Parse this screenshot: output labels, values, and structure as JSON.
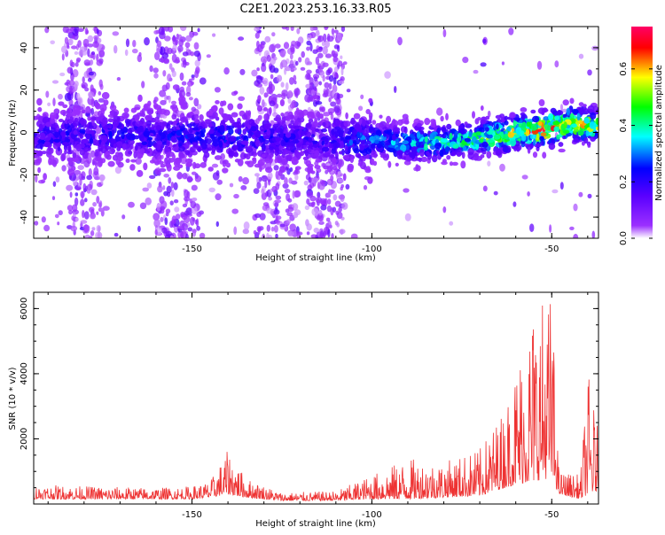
{
  "title": "C2E1.2023.253.16.33.R05",
  "chart_data": [
    {
      "type": "heatmap",
      "xlabel": "Height of straight line (km)",
      "ylabel": "Frequency (Hz)",
      "xlim": [
        -194,
        -37
      ],
      "ylim": [
        -50,
        50
      ],
      "xticks": [
        -150,
        -100,
        -50
      ],
      "yticks": [
        -40,
        -20,
        0,
        20,
        40
      ],
      "xtick_labels": [
        "-150",
        "-100",
        "-50"
      ],
      "ytick_labels": [
        "-40",
        "-20",
        "0",
        "20",
        "40"
      ],
      "colorbar": {
        "label": "Normalized spectral amplitude",
        "range": [
          0,
          0.75
        ],
        "ticks": [
          0.0,
          0.2,
          0.4,
          0.6
        ],
        "tick_labels": [
          "0.0",
          "0.2",
          "0.4",
          "0.6"
        ],
        "colormap": [
          "#ffffff",
          "#9b30ff",
          "#5a00ff",
          "#0000ff",
          "#00ffff",
          "#00ff00",
          "#ffff00",
          "#ff0000",
          "#ff0066"
        ]
      },
      "ridge": {
        "description_points": [
          {
            "x": -194,
            "y": -2,
            "amp": 0.22
          },
          {
            "x": -170,
            "y": -1,
            "amp": 0.22
          },
          {
            "x": -140,
            "y": -2,
            "amp": 0.24
          },
          {
            "x": -115,
            "y": -3,
            "amp": 0.2
          },
          {
            "x": -100,
            "y": -4,
            "amp": 0.3
          },
          {
            "x": -85,
            "y": -5,
            "amp": 0.38
          },
          {
            "x": -70,
            "y": -3,
            "amp": 0.45
          },
          {
            "x": -60,
            "y": 0,
            "amp": 0.55
          },
          {
            "x": -50,
            "y": 2,
            "amp": 0.65
          },
          {
            "x": -45,
            "y": 4,
            "amp": 0.55
          },
          {
            "x": -37,
            "y": 3,
            "amp": 0.55
          }
        ]
      },
      "grid": false
    },
    {
      "type": "line",
      "xlabel": "Height of straight line (km)",
      "ylabel": "SNR (10 * v/v)",
      "xlim": [
        -194,
        -37
      ],
      "ylim": [
        0,
        6500
      ],
      "xticks": [
        -150,
        -100,
        -50
      ],
      "yticks": [
        2000,
        4000,
        6000
      ],
      "xtick_labels": [
        "-150",
        "-100",
        "-50"
      ],
      "ytick_labels": [
        "2000",
        "4000",
        "6000"
      ],
      "series": [
        {
          "color": "#ee3333",
          "envelope": [
            {
              "x": -194,
              "base": 150,
              "peak": 600
            },
            {
              "x": -180,
              "base": 150,
              "peak": 550
            },
            {
              "x": -160,
              "base": 150,
              "peak": 500
            },
            {
              "x": -150,
              "base": 150,
              "peak": 550
            },
            {
              "x": -145,
              "base": 200,
              "peak": 700
            },
            {
              "x": -140,
              "base": 300,
              "peak": 1650
            },
            {
              "x": -135,
              "base": 200,
              "peak": 800
            },
            {
              "x": -125,
              "base": 100,
              "peak": 350
            },
            {
              "x": -110,
              "base": 100,
              "peak": 400
            },
            {
              "x": -100,
              "base": 150,
              "peak": 900
            },
            {
              "x": -90,
              "base": 150,
              "peak": 1400
            },
            {
              "x": -80,
              "base": 200,
              "peak": 1300
            },
            {
              "x": -70,
              "base": 250,
              "peak": 1700
            },
            {
              "x": -63,
              "base": 500,
              "peak": 3000
            },
            {
              "x": -60,
              "base": 600,
              "peak": 4300
            },
            {
              "x": -55,
              "base": 700,
              "peak": 6300
            },
            {
              "x": -50,
              "base": 800,
              "peak": 6550
            },
            {
              "x": -48,
              "base": 300,
              "peak": 1000
            },
            {
              "x": -42,
              "base": 150,
              "peak": 900
            },
            {
              "x": -40,
              "base": 300,
              "peak": 4100
            },
            {
              "x": -37,
              "base": 400,
              "peak": 2200
            }
          ]
        }
      ],
      "grid": false
    }
  ]
}
